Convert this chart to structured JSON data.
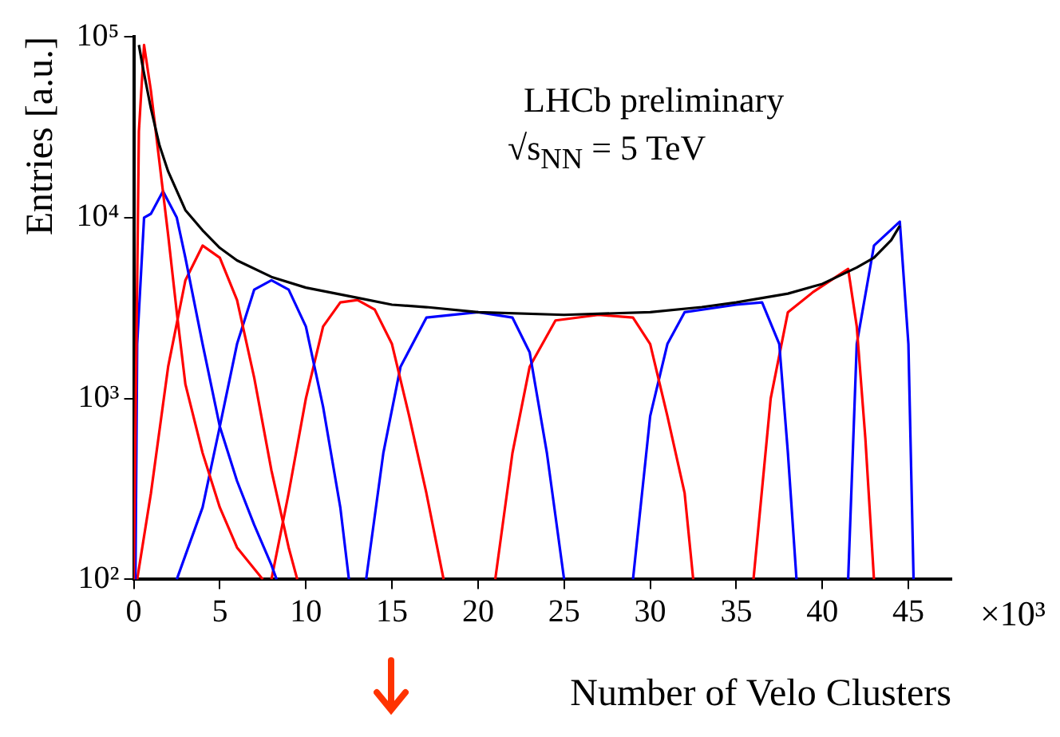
{
  "chart_data": {
    "type": "line",
    "xlabel": "Number of Velo Clusters",
    "ylabel": "Entries [a.u.]",
    "log": "y",
    "xlim": [
      0,
      47.5
    ],
    "xticks": [
      0,
      5,
      10,
      15,
      20,
      25,
      30,
      35,
      40,
      45
    ],
    "ylim": [
      100,
      100000
    ],
    "yticks": [
      {
        "value": 100,
        "label": "10²"
      },
      {
        "value": 1000,
        "label": "10³"
      },
      {
        "value": 10000,
        "label": "10⁴"
      },
      {
        "value": 100000,
        "label": "10⁵"
      }
    ],
    "grid": false,
    "legend": false,
    "marker": "none",
    "annotations": [
      "LHCb preliminary",
      "√s$_{NN}$ = 5 TeV",
      "×10³"
    ],
    "series": [
      {
        "color": "#000000",
        "x": [
          0.3,
          0.5,
          1,
          1.5,
          2,
          3,
          4,
          5,
          6,
          8,
          10,
          13,
          15,
          17,
          20,
          25,
          30,
          33,
          35,
          38,
          40,
          42,
          43,
          44,
          44.5
        ],
        "values": [
          90000,
          70000,
          40000,
          25000,
          18000,
          11000,
          8500,
          6800,
          5800,
          4700,
          4100,
          3600,
          3300,
          3200,
          3000,
          2900,
          3000,
          3200,
          3400,
          3800,
          4300,
          5300,
          6000,
          7500,
          9000
        ]
      },
      {
        "color": "#ff0000",
        "x": [
          0,
          0.3,
          0.6,
          1,
          1.5,
          2,
          2.5,
          3,
          4,
          5,
          6,
          7.5
        ],
        "values": [
          100,
          30000,
          90000,
          50000,
          20000,
          8000,
          3000,
          1200,
          500,
          250,
          150,
          100
        ]
      },
      {
        "color": "#0000ff",
        "x": [
          0.1,
          0.2,
          0.6,
          1,
          1.7,
          2.5,
          3,
          4,
          5,
          6,
          7,
          8,
          8.3
        ],
        "values": [
          100,
          2000,
          10000,
          10500,
          14000,
          10000,
          6000,
          2000,
          700,
          350,
          200,
          120,
          100
        ]
      },
      {
        "color": "#ff0000",
        "x": [
          0.2,
          1,
          2,
          3,
          4,
          5,
          6,
          7,
          8,
          9,
          9.5
        ],
        "values": [
          100,
          300,
          1500,
          4500,
          7000,
          6000,
          3500,
          1300,
          400,
          150,
          100
        ]
      },
      {
        "color": "#0000ff",
        "x": [
          2.5,
          4,
          5,
          6,
          7,
          8,
          9,
          10,
          11,
          12,
          12.5
        ],
        "values": [
          100,
          250,
          700,
          2000,
          4000,
          4500,
          4000,
          2500,
          900,
          250,
          100
        ]
      },
      {
        "color": "#ff0000",
        "x": [
          8,
          9,
          10,
          11,
          12,
          13,
          14,
          15,
          16,
          17,
          18
        ],
        "values": [
          100,
          300,
          1000,
          2500,
          3400,
          3500,
          3100,
          2000,
          800,
          300,
          100
        ]
      },
      {
        "color": "#0000ff",
        "x": [
          13.5,
          14.5,
          15.5,
          17,
          20,
          22,
          23,
          24,
          25
        ],
        "values": [
          100,
          500,
          1500,
          2800,
          3000,
          2800,
          1800,
          500,
          100
        ]
      },
      {
        "color": "#ff0000",
        "x": [
          21,
          22,
          23,
          24.5,
          27,
          29,
          30,
          31,
          32,
          32.5
        ],
        "values": [
          100,
          500,
          1500,
          2700,
          2900,
          2800,
          2000,
          800,
          300,
          100
        ]
      },
      {
        "color": "#0000ff",
        "x": [
          29,
          30,
          31,
          32,
          35,
          36.5,
          37.5,
          38,
          38.5
        ],
        "values": [
          100,
          800,
          2000,
          3000,
          3300,
          3400,
          2000,
          500,
          100
        ]
      },
      {
        "color": "#ff0000",
        "x": [
          36,
          37,
          38,
          39.5,
          41.5,
          42,
          42.5,
          43
        ],
        "values": [
          100,
          1000,
          3000,
          3900,
          5200,
          2500,
          600,
          100
        ]
      },
      {
        "color": "#0000ff",
        "x": [
          41.5,
          42,
          43,
          44.5,
          45,
          45.3
        ],
        "values": [
          100,
          2000,
          7000,
          9500,
          2000,
          100
        ]
      }
    ]
  }
}
